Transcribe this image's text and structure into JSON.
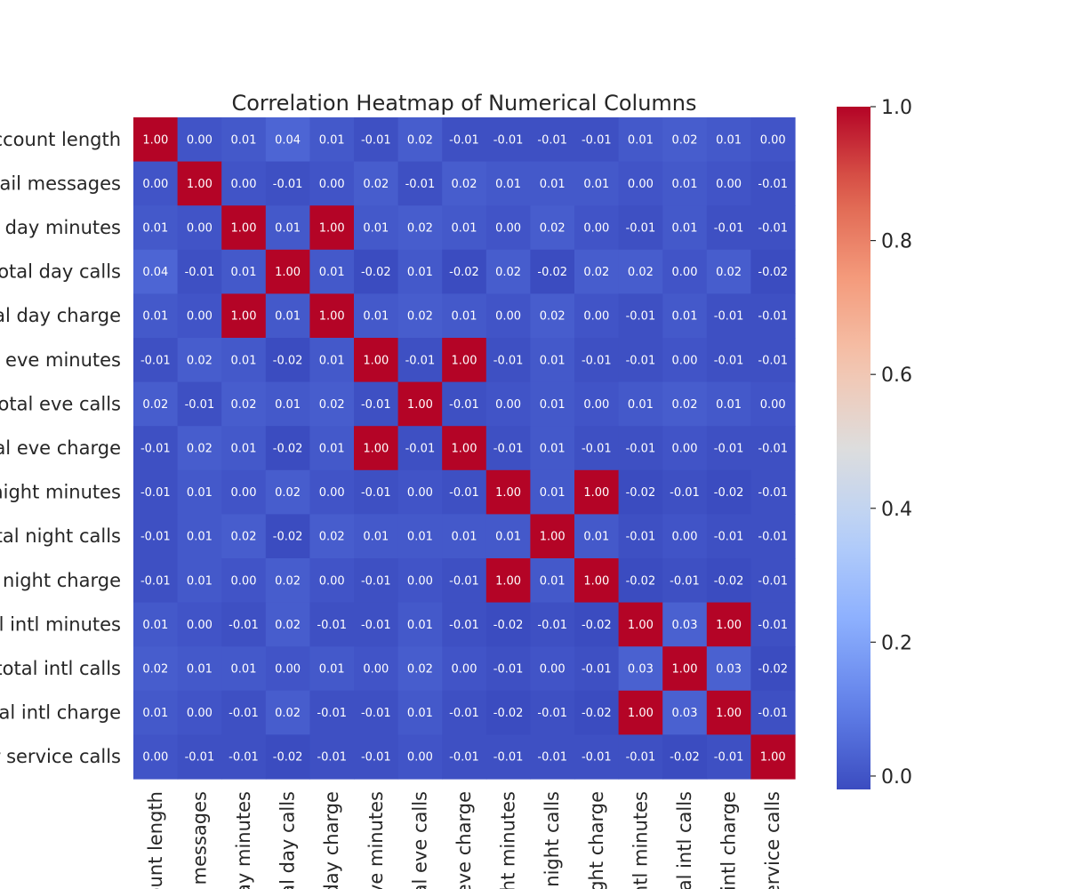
{
  "chart_data": {
    "type": "heatmap",
    "title": "Correlation Heatmap of Numerical Columns",
    "row_labels": [
      "ccount length",
      "nail messages",
      "l day minutes",
      "total day calls",
      "al day charge",
      "l eve minutes",
      "total eve calls",
      "al eve charge",
      "night minutes",
      "otal night calls",
      "l night charge",
      "al intl minutes",
      "total intl calls",
      "tal intl charge",
      "r service calls"
    ],
    "column_labels": [
      "ount length",
      "messages",
      "ay minutes",
      "al day calls",
      "day charge",
      "ve minutes",
      "al eve calls",
      "eve charge",
      "ght minutes",
      "night calls",
      "ght charge",
      "ntl minutes",
      "tal intl calls",
      "intl charge",
      "ervice calls"
    ],
    "values": [
      [
        1.0,
        -0.0,
        0.01,
        0.04,
        0.01,
        -0.01,
        0.02,
        -0.01,
        -0.01,
        -0.01,
        -0.01,
        0.01,
        0.02,
        0.01,
        -0.0
      ],
      [
        -0.0,
        1.0,
        0.0,
        -0.01,
        0.0,
        0.02,
        -0.01,
        0.02,
        0.01,
        0.01,
        0.01,
        0.0,
        0.01,
        0.0,
        -0.01
      ],
      [
        0.01,
        0.0,
        1.0,
        0.01,
        1.0,
        0.01,
        0.02,
        0.01,
        0.0,
        0.02,
        0.0,
        -0.01,
        0.01,
        -0.01,
        -0.01
      ],
      [
        0.04,
        -0.01,
        0.01,
        1.0,
        0.01,
        -0.02,
        0.01,
        -0.02,
        0.02,
        -0.02,
        0.02,
        0.02,
        0.0,
        0.02,
        -0.02
      ],
      [
        0.01,
        0.0,
        1.0,
        0.01,
        1.0,
        0.01,
        0.02,
        0.01,
        0.0,
        0.02,
        0.0,
        -0.01,
        0.01,
        -0.01,
        -0.01
      ],
      [
        -0.01,
        0.02,
        0.01,
        -0.02,
        0.01,
        1.0,
        -0.01,
        1.0,
        -0.01,
        0.01,
        -0.01,
        -0.01,
        0.0,
        -0.01,
        -0.01
      ],
      [
        0.02,
        -0.01,
        0.02,
        0.01,
        0.02,
        -0.01,
        1.0,
        -0.01,
        -0.0,
        0.01,
        -0.0,
        0.01,
        0.02,
        0.01,
        0.0
      ],
      [
        -0.01,
        0.02,
        0.01,
        -0.02,
        0.01,
        1.0,
        -0.01,
        1.0,
        -0.01,
        0.01,
        -0.01,
        -0.01,
        0.0,
        -0.01,
        -0.01
      ],
      [
        -0.01,
        0.01,
        0.0,
        0.02,
        0.0,
        -0.01,
        -0.0,
        -0.01,
        1.0,
        0.01,
        1.0,
        -0.02,
        -0.01,
        -0.02,
        -0.01
      ],
      [
        -0.01,
        0.01,
        0.02,
        -0.02,
        0.02,
        0.01,
        0.01,
        0.01,
        0.01,
        1.0,
        0.01,
        -0.01,
        0.0,
        -0.01,
        -0.01
      ],
      [
        -0.01,
        0.01,
        0.0,
        0.02,
        0.0,
        -0.01,
        -0.0,
        -0.01,
        1.0,
        0.01,
        1.0,
        -0.02,
        -0.01,
        -0.02,
        -0.01
      ],
      [
        0.01,
        0.0,
        -0.01,
        0.02,
        -0.01,
        -0.01,
        0.01,
        -0.01,
        -0.02,
        -0.01,
        -0.02,
        1.0,
        0.03,
        1.0,
        -0.01
      ],
      [
        0.02,
        0.01,
        0.01,
        0.0,
        0.01,
        0.0,
        0.02,
        0.0,
        -0.01,
        0.0,
        -0.01,
        0.03,
        1.0,
        0.03,
        -0.02
      ],
      [
        0.01,
        0.0,
        -0.01,
        0.02,
        -0.01,
        -0.01,
        0.01,
        -0.01,
        -0.02,
        -0.01,
        -0.02,
        1.0,
        0.03,
        1.0,
        -0.01
      ],
      [
        -0.0,
        -0.01,
        -0.01,
        -0.02,
        -0.01,
        -0.01,
        0.0,
        -0.01,
        -0.01,
        -0.01,
        -0.01,
        -0.01,
        -0.02,
        -0.01,
        1.0
      ]
    ],
    "value_format": "2 decimals",
    "colormap": "coolwarm",
    "color_range": [
      -0.02,
      1.0
    ],
    "colorbar": {
      "ticks": [
        0.0,
        0.2,
        0.4,
        0.6,
        0.8,
        1.0
      ],
      "tick_labels": [
        "0.0",
        "0.2",
        "0.4",
        "0.6",
        "0.8",
        "1.0"
      ],
      "placement": "right"
    }
  }
}
